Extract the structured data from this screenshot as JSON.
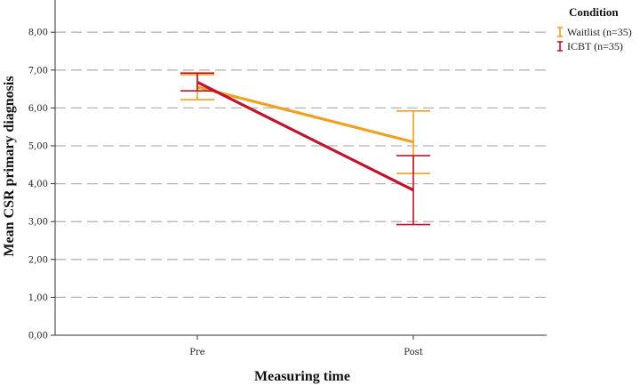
{
  "chart_data": {
    "type": "line",
    "title": "",
    "xlabel": "Measuring time",
    "ylabel": "Mean CSR primary diagnosis",
    "categories": [
      "Pre",
      "Post"
    ],
    "ylim": [
      0,
      8.9
    ],
    "yticks": [
      0,
      1,
      2,
      3,
      4,
      5,
      6,
      7,
      8
    ],
    "ytick_labels": [
      "0,00",
      "1,00",
      "2,00",
      "3,00",
      "4,00",
      "5,00",
      "6,00",
      "7,00",
      "8,00"
    ],
    "grid": "horizontal dashed",
    "legend": {
      "title": "Condition",
      "placement": "top-right"
    },
    "series": [
      {
        "name": "Waitlist (n=35)",
        "color": "#f0a020",
        "values": [
          6.55,
          5.1
        ],
        "error_low": [
          6.22,
          4.27
        ],
        "error_high": [
          6.88,
          5.92
        ]
      },
      {
        "name": "ICBT (n=35)",
        "color": "#c0142c",
        "values": [
          6.68,
          3.83
        ],
        "error_low": [
          6.45,
          2.92
        ],
        "error_high": [
          6.92,
          4.74
        ]
      }
    ]
  }
}
